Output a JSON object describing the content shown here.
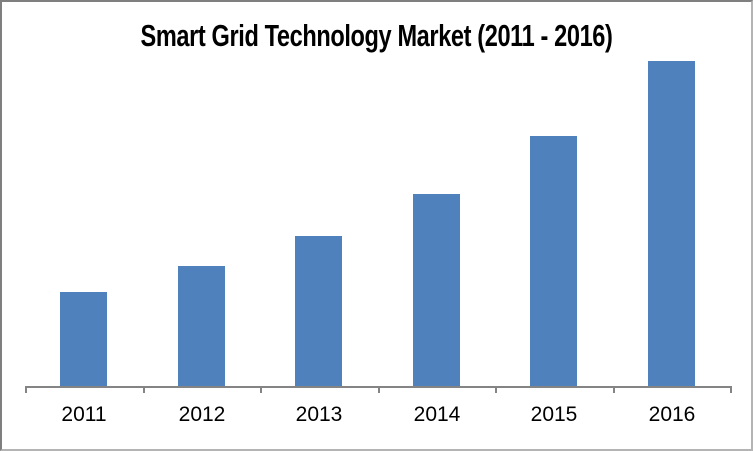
{
  "page": {
    "background": "#ffffff",
    "border_color_dark": "#7f7f7f",
    "border_color_light": "#b4b4b4"
  },
  "chart_data": {
    "type": "bar",
    "title": "Smart Grid Technology Market (2011 - 2016)",
    "categories": [
      "2011",
      "2012",
      "2013",
      "2014",
      "2015",
      "2016"
    ],
    "values": [
      29,
      37,
      46,
      59,
      77,
      100
    ],
    "units": "relative index (no y-axis or data labels shown; tallest 2016 bar = 100)",
    "xlabel": "",
    "ylabel": "",
    "ylim": [
      0,
      108
    ],
    "grid": false,
    "legend": false,
    "y_axis_visible": false,
    "x_tick_count": 7,
    "bar_color": "#4f81bd",
    "axis_color": "#848484",
    "title_color": "#000000",
    "label_color": "#000000"
  }
}
